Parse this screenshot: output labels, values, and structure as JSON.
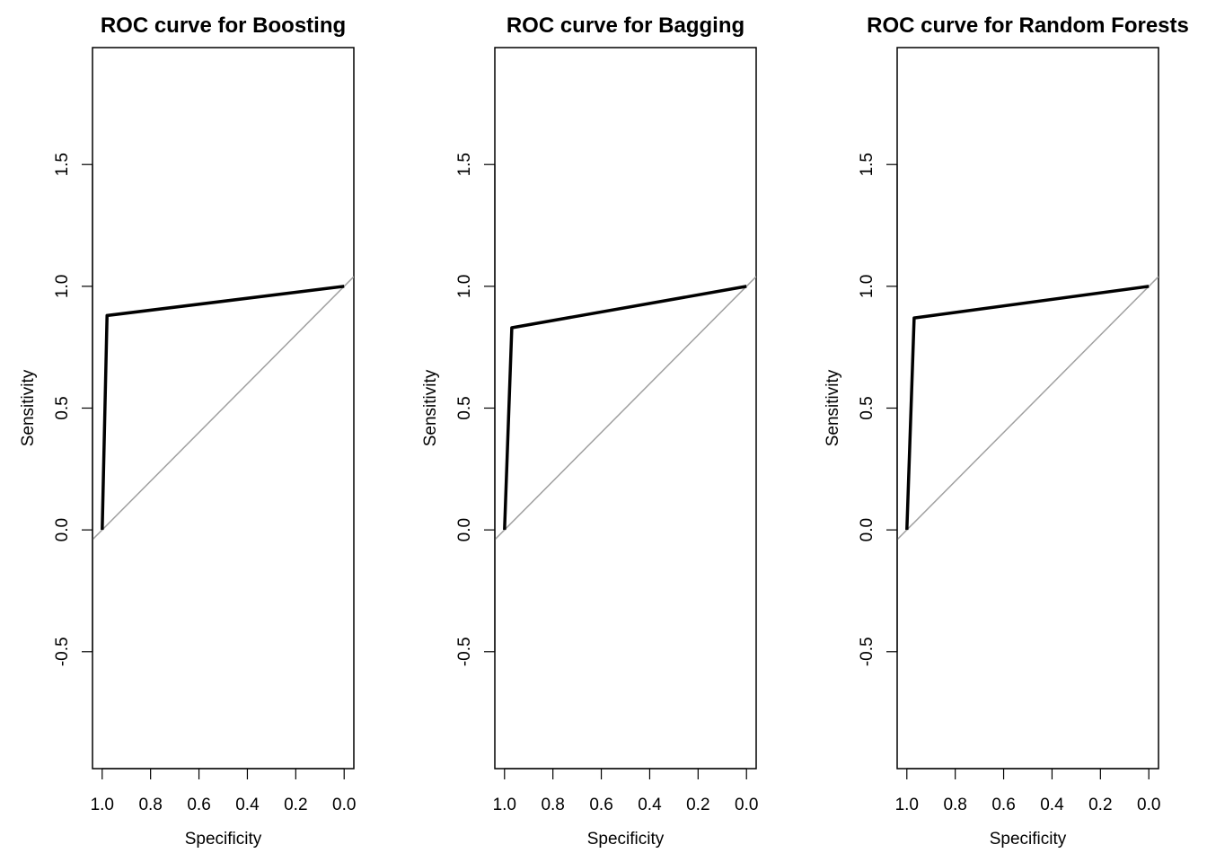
{
  "chart_data": [
    {
      "type": "line",
      "title": "ROC curve for Boosting",
      "xlabel": "Specificity",
      "ylabel": "Sensitivity",
      "xlim": [
        1.04,
        -0.04
      ],
      "ylim": [
        -0.98,
        1.98
      ],
      "x_reversed": true,
      "x_ticks": [
        1.0,
        0.8,
        0.6,
        0.4,
        0.2,
        0.0
      ],
      "x_tick_labels": [
        "1.0",
        "0.8",
        "0.6",
        "0.4",
        "0.2",
        "0.0"
      ],
      "y_ticks": [
        -0.5,
        0.0,
        0.5,
        1.0,
        1.5
      ],
      "y_tick_labels": [
        "-0.5",
        "0.0",
        "0.5",
        "1.0",
        "1.5"
      ],
      "grid": false,
      "series": [
        {
          "specificity": [
            1.0,
            0.98,
            0.0
          ],
          "sensitivity": [
            0.0,
            0.88,
            1.0
          ],
          "color": "#000000"
        }
      ],
      "reference_line": {
        "color": "#a0a0a0"
      }
    },
    {
      "type": "line",
      "title": "ROC curve for Bagging",
      "xlabel": "Specificity",
      "ylabel": "Sensitivity",
      "xlim": [
        1.04,
        -0.04
      ],
      "ylim": [
        -0.98,
        1.98
      ],
      "x_reversed": true,
      "x_ticks": [
        1.0,
        0.8,
        0.6,
        0.4,
        0.2,
        0.0
      ],
      "x_tick_labels": [
        "1.0",
        "0.8",
        "0.6",
        "0.4",
        "0.2",
        "0.0"
      ],
      "y_ticks": [
        -0.5,
        0.0,
        0.5,
        1.0,
        1.5
      ],
      "y_tick_labels": [
        "-0.5",
        "0.0",
        "0.5",
        "1.0",
        "1.5"
      ],
      "grid": false,
      "series": [
        {
          "specificity": [
            1.0,
            0.97,
            0.0
          ],
          "sensitivity": [
            0.0,
            0.83,
            1.0
          ],
          "color": "#000000"
        }
      ],
      "reference_line": {
        "color": "#a0a0a0"
      }
    },
    {
      "type": "line",
      "title": "ROC curve for Random Forests",
      "xlabel": "Specificity",
      "ylabel": "Sensitivity",
      "xlim": [
        1.04,
        -0.04
      ],
      "ylim": [
        -0.98,
        1.98
      ],
      "x_reversed": true,
      "x_ticks": [
        1.0,
        0.8,
        0.6,
        0.4,
        0.2,
        0.0
      ],
      "x_tick_labels": [
        "1.0",
        "0.8",
        "0.6",
        "0.4",
        "0.2",
        "0.0"
      ],
      "y_ticks": [
        -0.5,
        0.0,
        0.5,
        1.0,
        1.5
      ],
      "y_tick_labels": [
        "-0.5",
        "0.0",
        "0.5",
        "1.0",
        "1.5"
      ],
      "grid": false,
      "series": [
        {
          "specificity": [
            1.0,
            0.97,
            0.0
          ],
          "sensitivity": [
            0.0,
            0.87,
            1.0
          ],
          "color": "#000000"
        }
      ],
      "reference_line": {
        "color": "#a0a0a0"
      }
    }
  ]
}
